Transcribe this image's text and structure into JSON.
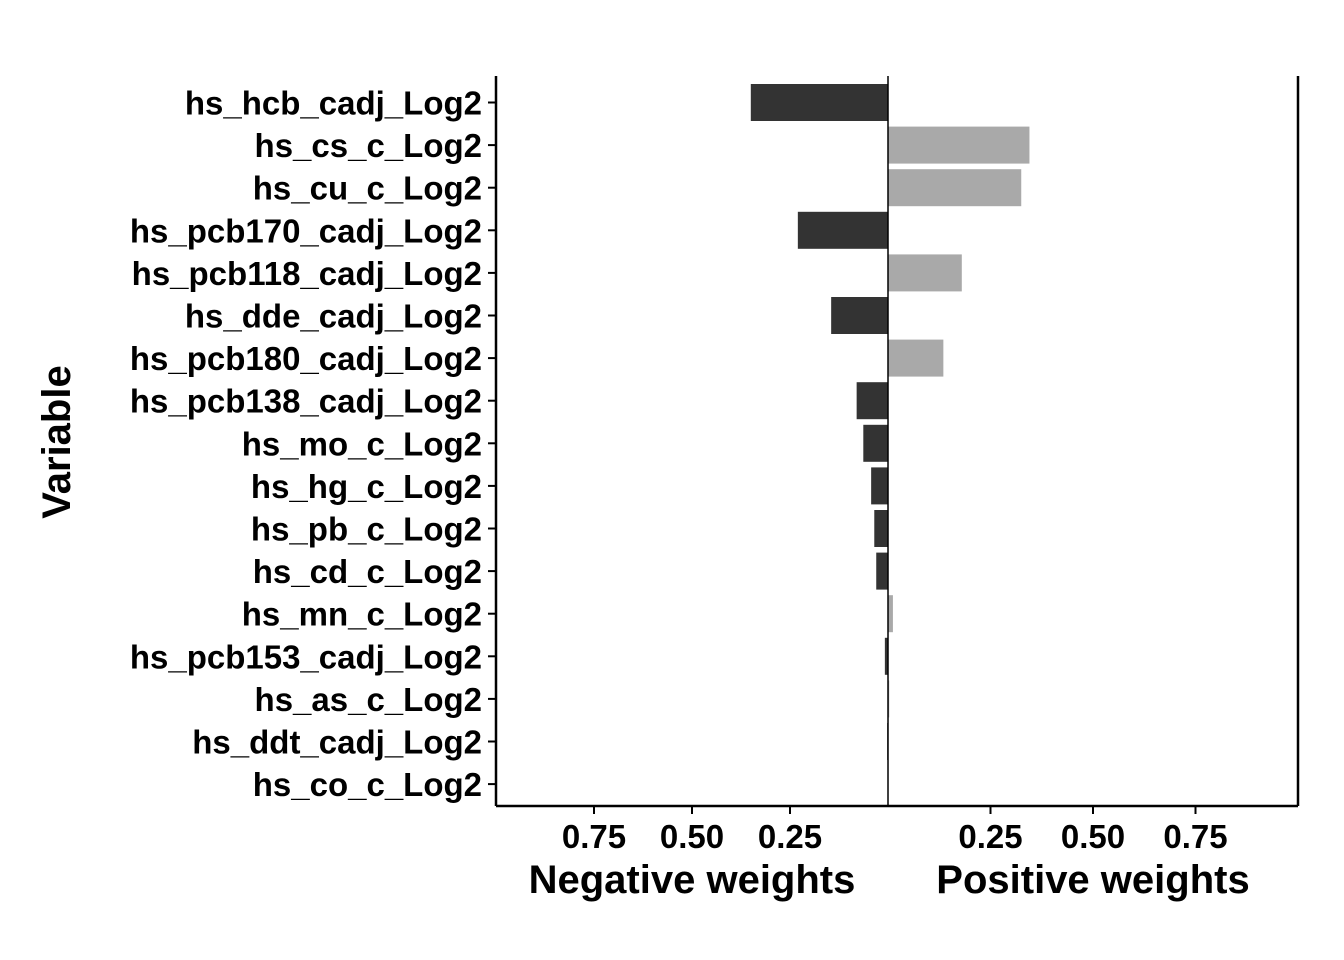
{
  "chart_data": {
    "type": "bar",
    "orientation": "horizontal",
    "ylabel": "Variable",
    "panels": [
      {
        "xlabel": "Negative weights",
        "xlim": [
          1.0,
          0.0
        ],
        "ticks": [
          "0.75",
          "0.50",
          "0.25"
        ],
        "tick_values": [
          0.75,
          0.5,
          0.25
        ]
      },
      {
        "xlabel": "Positive weights",
        "xlim": [
          0.0,
          1.0
        ],
        "ticks": [
          "0.25",
          "0.50",
          "0.75"
        ],
        "tick_values": [
          0.25,
          0.5,
          0.75
        ]
      }
    ],
    "categories": [
      "hs_hcb_cadj_Log2",
      "hs_cs_c_Log2",
      "hs_cu_c_Log2",
      "hs_pcb170_cadj_Log2",
      "hs_pcb118_cadj_Log2",
      "hs_dde_cadj_Log2",
      "hs_pcb180_cadj_Log2",
      "hs_pcb138_cadj_Log2",
      "hs_mo_c_Log2",
      "hs_hg_c_Log2",
      "hs_pb_c_Log2",
      "hs_cd_c_Log2",
      "hs_mn_c_Log2",
      "hs_pcb153_cadj_Log2",
      "hs_as_c_Log2",
      "hs_ddt_cadj_Log2",
      "hs_co_c_Log2"
    ],
    "series": [
      {
        "values": [
          0.35,
          0,
          0,
          0.23,
          0,
          0.145,
          0,
          0.08,
          0.063,
          0.043,
          0.035,
          0.03,
          0,
          0.008,
          0,
          0.002,
          0
        ]
      },
      {
        "values": [
          0,
          0.345,
          0.325,
          0,
          0.18,
          0,
          0.135,
          0,
          0,
          0,
          0,
          0,
          0.012,
          0,
          0.003,
          0,
          0.001
        ]
      }
    ],
    "colors": {
      "negative": "#333333",
      "positive": "#a9a9a9"
    },
    "grid": false,
    "legend": "none"
  }
}
